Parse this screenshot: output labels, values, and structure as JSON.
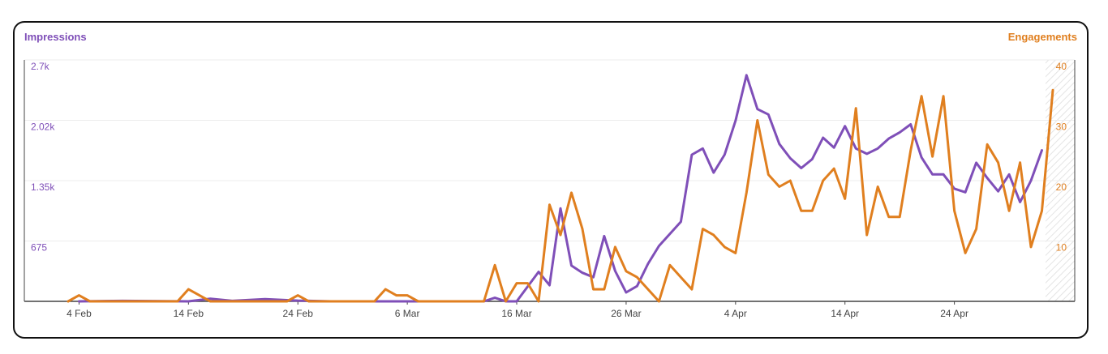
{
  "chart_data": {
    "type": "line",
    "title": "",
    "xlabel": "",
    "x_range": [
      "2025-01-30",
      "2025-05-06"
    ],
    "x_ticks": [
      "4 Feb",
      "14 Feb",
      "24 Feb",
      "6 Mar",
      "16 Mar",
      "26 Mar",
      "4 Apr",
      "14 Apr",
      "24 Apr"
    ],
    "left_axis": {
      "label": "Impressions",
      "ticks": [
        "2.7k",
        "2.02k",
        "1.35k",
        "675"
      ],
      "range": [
        0,
        2700
      ]
    },
    "right_axis": {
      "label": "Engagements",
      "ticks": [
        "40",
        "30",
        "20",
        "10"
      ],
      "range": [
        0,
        40
      ]
    },
    "grid": true,
    "series": [
      {
        "name": "Impressions",
        "axis": "left",
        "color": "#7f4fb8",
        "points": [
          [
            "2025-02-04",
            0
          ],
          [
            "2025-02-08",
            5
          ],
          [
            "2025-02-14",
            0
          ],
          [
            "2025-02-16",
            30
          ],
          [
            "2025-02-18",
            5
          ],
          [
            "2025-02-21",
            25
          ],
          [
            "2025-02-24",
            8
          ],
          [
            "2025-02-27",
            0
          ],
          [
            "2025-03-01",
            0
          ],
          [
            "2025-03-06",
            0
          ],
          [
            "2025-03-10",
            0
          ],
          [
            "2025-03-13",
            0
          ],
          [
            "2025-03-14",
            40
          ],
          [
            "2025-03-15",
            0
          ],
          [
            "2025-03-16",
            0
          ],
          [
            "2025-03-18",
            330
          ],
          [
            "2025-03-19",
            180
          ],
          [
            "2025-03-20",
            1040
          ],
          [
            "2025-03-21",
            400
          ],
          [
            "2025-03-22",
            320
          ],
          [
            "2025-03-23",
            270
          ],
          [
            "2025-03-24",
            730
          ],
          [
            "2025-03-25",
            340
          ],
          [
            "2025-03-26",
            100
          ],
          [
            "2025-03-27",
            170
          ],
          [
            "2025-03-28",
            420
          ],
          [
            "2025-03-29",
            620
          ],
          [
            "2025-03-31",
            890
          ],
          [
            "2025-04-01",
            1640
          ],
          [
            "2025-04-02",
            1710
          ],
          [
            "2025-04-03",
            1440
          ],
          [
            "2025-04-04",
            1640
          ],
          [
            "2025-04-05",
            2020
          ],
          [
            "2025-04-06",
            2530
          ],
          [
            "2025-04-07",
            2150
          ],
          [
            "2025-04-08",
            2090
          ],
          [
            "2025-04-09",
            1760
          ],
          [
            "2025-04-10",
            1600
          ],
          [
            "2025-04-11",
            1490
          ],
          [
            "2025-04-12",
            1590
          ],
          [
            "2025-04-13",
            1830
          ],
          [
            "2025-04-14",
            1720
          ],
          [
            "2025-04-15",
            1960
          ],
          [
            "2025-04-16",
            1710
          ],
          [
            "2025-04-17",
            1650
          ],
          [
            "2025-04-18",
            1710
          ],
          [
            "2025-04-19",
            1820
          ],
          [
            "2025-04-20",
            1890
          ],
          [
            "2025-04-21",
            1980
          ],
          [
            "2025-04-22",
            1610
          ],
          [
            "2025-04-23",
            1420
          ],
          [
            "2025-04-24",
            1420
          ],
          [
            "2025-04-25",
            1260
          ],
          [
            "2025-04-26",
            1220
          ],
          [
            "2025-04-27",
            1550
          ],
          [
            "2025-04-28",
            1380
          ],
          [
            "2025-04-29",
            1230
          ],
          [
            "2025-04-30",
            1420
          ],
          [
            "2025-05-01",
            1110
          ],
          [
            "2025-05-02",
            1350
          ],
          [
            "2025-05-03",
            1690
          ]
        ]
      },
      {
        "name": "Engagements",
        "axis": "right",
        "color": "#e07f1f",
        "points": [
          [
            "2025-02-03",
            0
          ],
          [
            "2025-02-04",
            1
          ],
          [
            "2025-02-05",
            0
          ],
          [
            "2025-02-13",
            0
          ],
          [
            "2025-02-14",
            2
          ],
          [
            "2025-02-16",
            0
          ],
          [
            "2025-02-23",
            0
          ],
          [
            "2025-02-24",
            1
          ],
          [
            "2025-02-25",
            0
          ],
          [
            "2025-03-03",
            0
          ],
          [
            "2025-03-04",
            2
          ],
          [
            "2025-03-05",
            1
          ],
          [
            "2025-03-06",
            1
          ],
          [
            "2025-03-07",
            0
          ],
          [
            "2025-03-13",
            0
          ],
          [
            "2025-03-14",
            6
          ],
          [
            "2025-03-15",
            0
          ],
          [
            "2025-03-16",
            3
          ],
          [
            "2025-03-17",
            3
          ],
          [
            "2025-03-18",
            0
          ],
          [
            "2025-03-19",
            16
          ],
          [
            "2025-03-20",
            11
          ],
          [
            "2025-03-21",
            18
          ],
          [
            "2025-03-22",
            12
          ],
          [
            "2025-03-23",
            2
          ],
          [
            "2025-03-24",
            2
          ],
          [
            "2025-03-25",
            9
          ],
          [
            "2025-03-26",
            5
          ],
          [
            "2025-03-27",
            4
          ],
          [
            "2025-03-28",
            2
          ],
          [
            "2025-03-29",
            0
          ],
          [
            "2025-03-30",
            6
          ],
          [
            "2025-03-31",
            4
          ],
          [
            "2025-04-01",
            2
          ],
          [
            "2025-04-02",
            12
          ],
          [
            "2025-04-03",
            11
          ],
          [
            "2025-04-04",
            9
          ],
          [
            "2025-04-05",
            8
          ],
          [
            "2025-04-06",
            18
          ],
          [
            "2025-04-07",
            30
          ],
          [
            "2025-04-08",
            21
          ],
          [
            "2025-04-09",
            19
          ],
          [
            "2025-04-10",
            20
          ],
          [
            "2025-04-11",
            15
          ],
          [
            "2025-04-12",
            15
          ],
          [
            "2025-04-13",
            20
          ],
          [
            "2025-04-14",
            22
          ],
          [
            "2025-04-15",
            17
          ],
          [
            "2025-04-16",
            32
          ],
          [
            "2025-04-17",
            11
          ],
          [
            "2025-04-18",
            19
          ],
          [
            "2025-04-19",
            14
          ],
          [
            "2025-04-20",
            14
          ],
          [
            "2025-04-21",
            25
          ],
          [
            "2025-04-22",
            34
          ],
          [
            "2025-04-23",
            24
          ],
          [
            "2025-04-24",
            34
          ],
          [
            "2025-04-25",
            15
          ],
          [
            "2025-04-26",
            8
          ],
          [
            "2025-04-27",
            12
          ],
          [
            "2025-04-28",
            26
          ],
          [
            "2025-04-29",
            23
          ],
          [
            "2025-04-30",
            15
          ],
          [
            "2025-05-01",
            23
          ],
          [
            "2025-05-02",
            9
          ],
          [
            "2025-05-03",
            15
          ],
          [
            "2025-05-04",
            35
          ]
        ]
      }
    ]
  },
  "colors": {
    "impressions": "#7f4fb8",
    "engagements": "#e07f1f",
    "grid": "#ececec",
    "axis": "#444444"
  }
}
